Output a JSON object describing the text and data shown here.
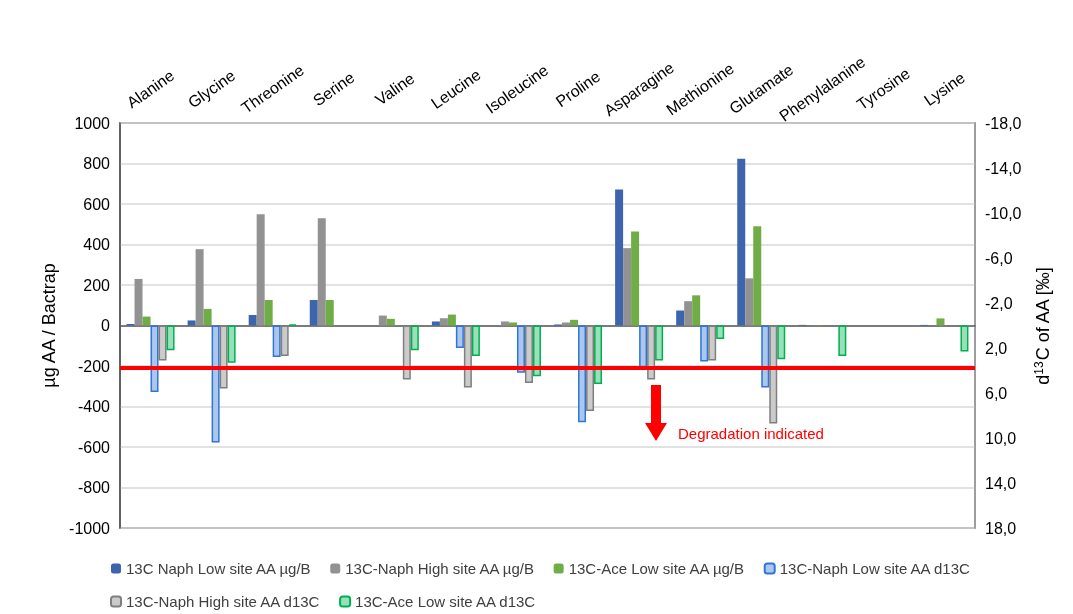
{
  "chart_data": {
    "type": "bar",
    "ylabel": "µg AA / Bactrap",
    "y2label": "d$^{13}$C of AA [‰]",
    "categories": [
      "Alanine",
      "Glycine",
      "Threonine",
      "Serine",
      "Valine",
      "Leucine",
      "Isoleucine",
      "Proline",
      "Asparagine",
      "Methionine",
      "Glutamate",
      "Phenylalanine",
      "Tyrosine",
      "Lysine"
    ],
    "series": [
      {
        "name": "13C Naph Low site AA µg/B",
        "color": "#3d65ad",
        "values": [
          8,
          25,
          52,
          126,
          null,
          20,
          null,
          5,
          672,
          74,
          823,
          3,
          null,
          3
        ]
      },
      {
        "name": "13C-Naph High site AA µg/B",
        "color": "#929292",
        "values": [
          230,
          377,
          549,
          530,
          49,
          36,
          20,
          15,
          382,
          120,
          233,
          null,
          null,
          null
        ]
      },
      {
        "name": "13C-Ace Low site AA µg/B",
        "color": "#70ad47",
        "values": [
          44,
          82,
          126,
          126,
          33,
          54,
          15,
          28,
          464,
          149,
          490,
          2,
          null,
          35
        ]
      },
      {
        "name": "13C-Naph Low site AA d13C",
        "color": "#2e75d6",
        "axis": "y2",
        "values": [
          5.9,
          10.4,
          2.8,
          null,
          null,
          2.0,
          4.2,
          8.6,
          3.7,
          3.2,
          5.5,
          null,
          null,
          null
        ]
      },
      {
        "name": "13C-Naph High site AA d13C",
        "color": "#7f7f7f",
        "axis": "y2",
        "values": [
          3.1,
          5.6,
          2.7,
          null,
          4.8,
          5.5,
          5.1,
          7.6,
          4.8,
          3.1,
          8.7,
          null,
          null,
          null
        ]
      },
      {
        "name": "13C-Ace Low site AA d13C",
        "color": "#00b050",
        "axis": "y2",
        "values": [
          2.2,
          3.3,
          -0.1,
          null,
          2.2,
          2.7,
          4.5,
          5.2,
          3.1,
          1.2,
          3.0,
          2.7,
          null,
          2.3
        ]
      }
    ],
    "ylim": [
      -1000,
      1000
    ],
    "yticks": [
      -1000,
      -800,
      -600,
      -400,
      -200,
      0,
      200,
      400,
      600,
      800,
      1000
    ],
    "y2lim": [
      18,
      -18
    ],
    "y2ticks": [
      {
        "value": -18,
        "label": "-18,0"
      },
      {
        "value": -14,
        "label": "-14,0"
      },
      {
        "value": -10,
        "label": "-10,0"
      },
      {
        "value": -6,
        "label": "-6,0"
      },
      {
        "value": -2,
        "label": "-2,0"
      },
      {
        "value": 2,
        "label": "2,0"
      },
      {
        "value": 6,
        "label": "6,0"
      },
      {
        "value": 10,
        "label": "10,0"
      },
      {
        "value": 14,
        "label": "14,0"
      },
      {
        "value": 18,
        "label": "18,0"
      }
    ],
    "ref_lines": [
      {
        "axis": "y",
        "value": -210,
        "color": "#ff0000"
      }
    ],
    "annotations": [
      "Degradation indicated"
    ],
    "grid": "y",
    "legend": "bottom"
  }
}
